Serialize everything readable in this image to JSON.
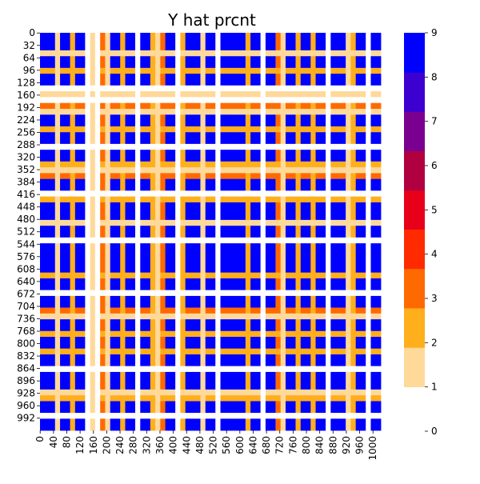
{
  "chart_data": {
    "type": "heatmap",
    "title": "Y hat prcnt",
    "xlabel": "",
    "ylabel": "",
    "x_tick_labels": [
      "0",
      "40",
      "80",
      "120",
      "160",
      "200",
      "240",
      "280",
      "320",
      "360",
      "400",
      "440",
      "480",
      "520",
      "560",
      "600",
      "640",
      "680",
      "720",
      "760",
      "800",
      "840",
      "880",
      "920",
      "960",
      "1000"
    ],
    "y_tick_labels": [
      "0",
      "32",
      "64",
      "96",
      "128",
      "160",
      "192",
      "224",
      "256",
      "288",
      "320",
      "352",
      "384",
      "416",
      "448",
      "480",
      "512",
      "544",
      "576",
      "608",
      "640",
      "672",
      "704",
      "736",
      "768",
      "800",
      "832",
      "864",
      "896",
      "928",
      "960",
      "992"
    ],
    "matrix_size": 1024,
    "block_profile": {
      "profile_values": [
        9,
        1,
        9,
        2,
        9,
        0,
        1,
        0,
        3,
        1,
        9,
        2,
        9,
        0,
        9,
        2,
        1,
        3,
        9,
        0,
        2,
        9,
        1,
        9,
        0,
        9,
        9,
        2,
        9,
        0,
        9,
        3,
        1,
        9,
        2,
        9,
        2,
        9,
        0,
        9,
        1,
        2,
        9,
        0,
        9
      ],
      "profile_weights": [
        3,
        1,
        2,
        1,
        2,
        1,
        1,
        1,
        1,
        1,
        2,
        1,
        2,
        1,
        2,
        1,
        1,
        1,
        2,
        1,
        1,
        3,
        1,
        2,
        1,
        2,
        3,
        1,
        2,
        1,
        2,
        1,
        1,
        2,
        1,
        2,
        1,
        2,
        1,
        3,
        1,
        1,
        2,
        1,
        2
      ],
      "rule": "cell value = minimum(row profile, column profile)"
    },
    "colorbar": {
      "ticks": [
        "0",
        "1",
        "2",
        "3",
        "4",
        "5",
        "6",
        "7",
        "8",
        "9"
      ],
      "range": [
        0,
        9
      ],
      "bins": [
        {
          "from": 1,
          "to": 1.89,
          "color": "#ffd99a"
        },
        {
          "from": 1.89,
          "to": 2.78,
          "color": "#ffae1c"
        },
        {
          "from": 2.78,
          "to": 3.67,
          "color": "#ff6a00"
        },
        {
          "from": 3.67,
          "to": 4.56,
          "color": "#ff2a00"
        },
        {
          "from": 4.56,
          "to": 5.44,
          "color": "#e8001a"
        },
        {
          "from": 5.44,
          "to": 6.33,
          "color": "#b00040"
        },
        {
          "from": 6.33,
          "to": 7.22,
          "color": "#7a0090"
        },
        {
          "from": 7.22,
          "to": 8.11,
          "color": "#3c00d0"
        },
        {
          "from": 8.11,
          "to": 9,
          "color": "#0000ff"
        }
      ]
    },
    "colors": {
      "zero": "#ffffff",
      "orange_base": "#ffa51a",
      "blue": "#0000ff",
      "red": "#ff1a00"
    },
    "grid": false,
    "legend": "colorbar-right"
  }
}
